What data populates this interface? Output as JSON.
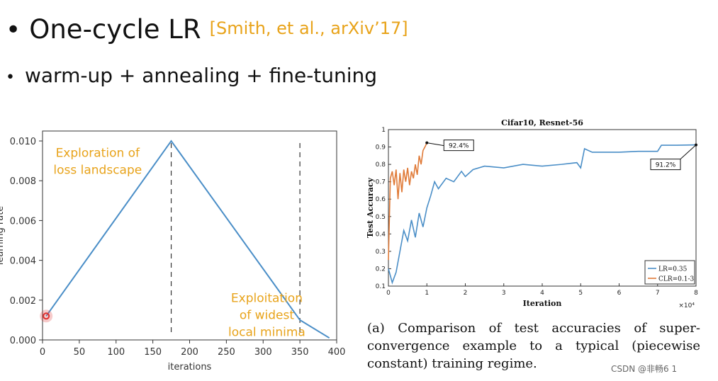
{
  "slide": {
    "bullet": "•",
    "title": "One-cycle LR",
    "citation": "[Smith, et al., arXiv’17]",
    "subtitle": "warm-up + annealing + fine-tuning"
  },
  "caption": "(a) Comparison of test accuracies of super-convergence example to a typical (piecewise constant) training regime.",
  "watermark": "CSDN @非畅6 1",
  "colors": {
    "accent": "#e8a31a",
    "line": "#4a8ec7",
    "clr": "#e07b39",
    "marker": "#e03030"
  },
  "chart_data": [
    {
      "type": "line",
      "title": "",
      "xlabel": "iterations",
      "ylabel": "learning rate",
      "xlim": [
        0,
        400
      ],
      "ylim": [
        0,
        0.0105
      ],
      "xticks": [
        "0",
        "50",
        "100",
        "150",
        "200",
        "250",
        "300",
        "350",
        "400"
      ],
      "yticks": [
        "0.000",
        "0.002",
        "0.004",
        "0.006",
        "0.008",
        "0.010"
      ],
      "x": [
        5,
        175,
        350,
        390
      ],
      "y": [
        0.0012,
        0.01,
        0.001,
        0.0001
      ],
      "vlines": [
        175,
        350
      ],
      "marker_point": [
        5,
        0.0012
      ],
      "annotations": [
        {
          "text": "Exploration of\nloss landscape",
          "x": 75,
          "y": 0.0092
        },
        {
          "text": "Exploitation\nof widest\nlocal minima",
          "x": 305,
          "y": 0.0019
        }
      ]
    },
    {
      "type": "line",
      "title": "Cifar10, Resnet-56",
      "xlabel": "Iteration",
      "ylabel": "Test Accuracy",
      "x_scale_label": "×10⁴",
      "xlim": [
        0,
        8
      ],
      "ylim": [
        0.1,
        1.0
      ],
      "xticks": [
        "0",
        "1",
        "2",
        "3",
        "4",
        "5",
        "6",
        "7",
        "8"
      ],
      "yticks": [
        "0.1",
        "0.2",
        "0.3",
        "0.4",
        "0.5",
        "0.6",
        "0.7",
        "0.8",
        "0.9",
        "1"
      ],
      "series": [
        {
          "name": "LR=0.35",
          "x": [
            0,
            0.1,
            0.2,
            0.3,
            0.4,
            0.5,
            0.6,
            0.7,
            0.8,
            0.9,
            1.0,
            1.1,
            1.2,
            1.3,
            1.5,
            1.7,
            1.9,
            2.0,
            2.2,
            2.5,
            3.0,
            3.5,
            4.0,
            4.5,
            4.9,
            5.0,
            5.1,
            5.3,
            5.5,
            6.0,
            6.5,
            7.0,
            7.1,
            7.5,
            8.0
          ],
          "y": [
            0.2,
            0.12,
            0.18,
            0.3,
            0.42,
            0.36,
            0.48,
            0.38,
            0.52,
            0.44,
            0.55,
            0.62,
            0.7,
            0.66,
            0.72,
            0.7,
            0.76,
            0.73,
            0.77,
            0.79,
            0.78,
            0.8,
            0.79,
            0.8,
            0.81,
            0.78,
            0.89,
            0.87,
            0.87,
            0.87,
            0.875,
            0.875,
            0.91,
            0.91,
            0.912
          ]
        },
        {
          "name": "CLR=0.1-3",
          "x": [
            0,
            0.05,
            0.1,
            0.15,
            0.2,
            0.25,
            0.3,
            0.35,
            0.4,
            0.45,
            0.5,
            0.55,
            0.6,
            0.65,
            0.7,
            0.75,
            0.8,
            0.85,
            0.9,
            0.95,
            1.0
          ],
          "y": [
            0.25,
            0.72,
            0.76,
            0.68,
            0.77,
            0.6,
            0.75,
            0.64,
            0.77,
            0.7,
            0.78,
            0.68,
            0.76,
            0.72,
            0.8,
            0.74,
            0.85,
            0.8,
            0.88,
            0.9,
            0.924
          ]
        }
      ],
      "annotations": [
        {
          "text": "92.4%",
          "x": 1.0,
          "y": 0.924
        },
        {
          "text": "91.2%",
          "x": 8.0,
          "y": 0.912
        }
      ],
      "legend": "bottom-right"
    }
  ]
}
